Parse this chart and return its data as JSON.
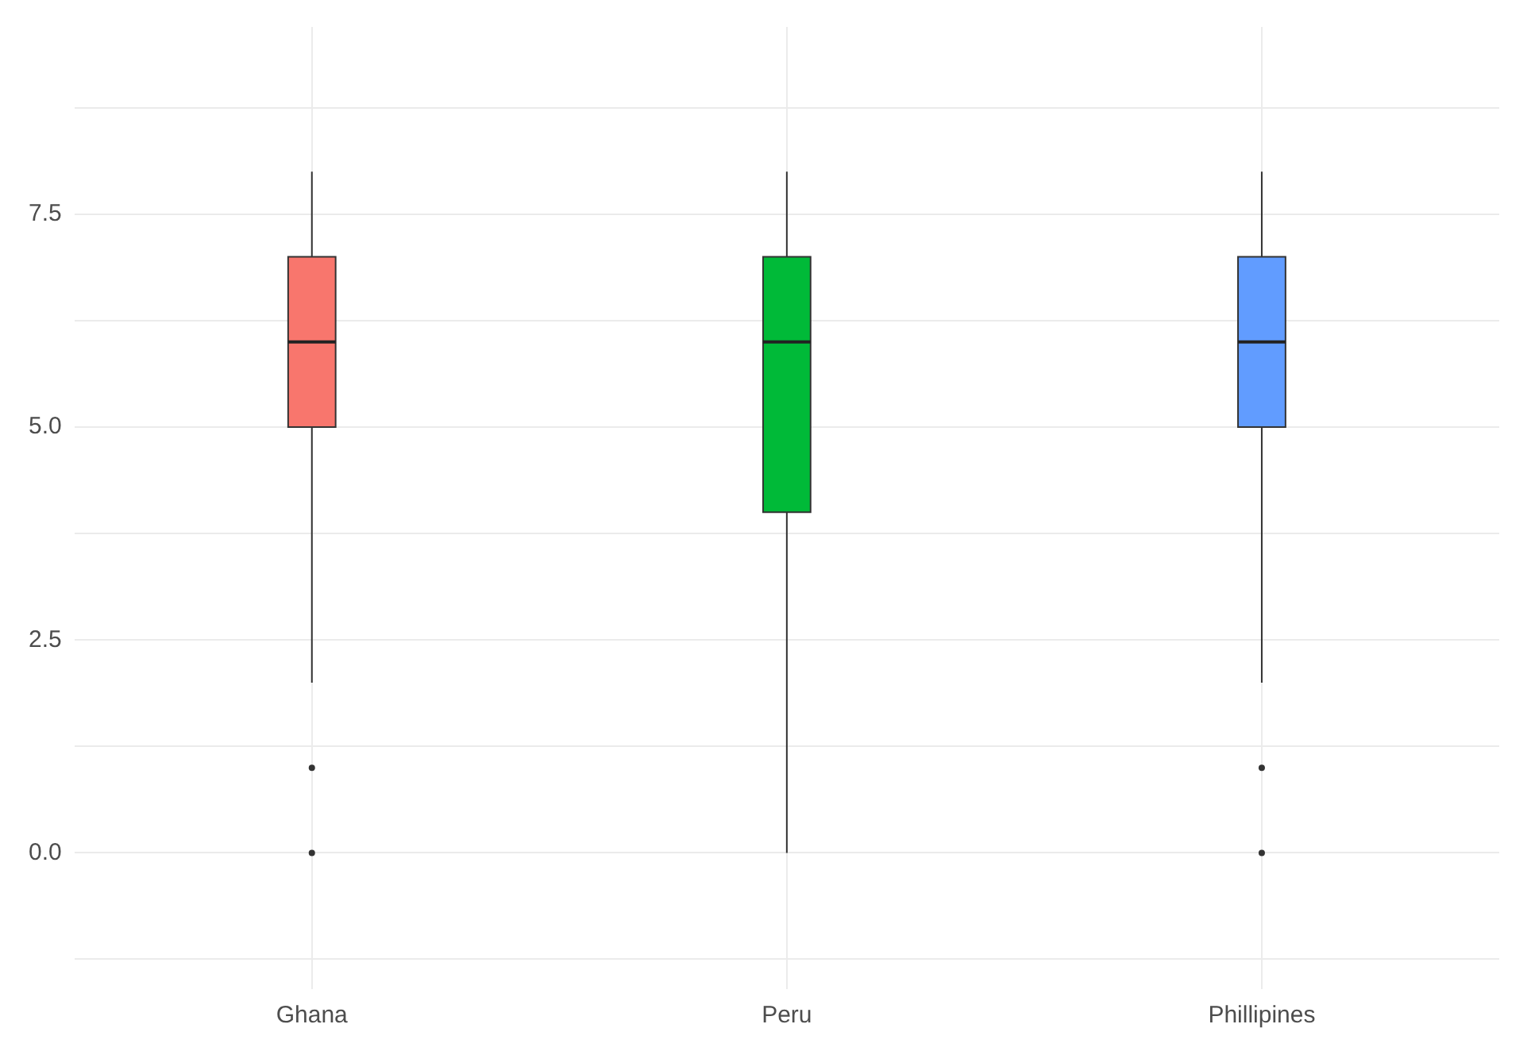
{
  "chart_data": {
    "type": "box",
    "categories": [
      "Ghana",
      "Peru",
      "Phillipines"
    ],
    "colors": [
      "#f8766d",
      "#00ba38",
      "#619cff"
    ],
    "boxes": [
      {
        "low": 2,
        "q1": 5,
        "median": 6,
        "q3": 7,
        "high": 8,
        "outliers": [
          1,
          0
        ]
      },
      {
        "low": 0,
        "q1": 4,
        "median": 6,
        "q3": 7,
        "high": 8
      },
      {
        "low": 2,
        "q1": 5,
        "median": 6,
        "q3": 7,
        "high": 8,
        "outliers": [
          1,
          0
        ]
      }
    ],
    "ylim": [
      -1.6,
      9.7
    ],
    "yticks": [
      {
        "value": -1.25,
        "label": null
      },
      {
        "value": 0,
        "label": "0.0"
      },
      {
        "value": 1.25,
        "label": null
      },
      {
        "value": 2.5,
        "label": "2.5"
      },
      {
        "value": 3.75,
        "label": null
      },
      {
        "value": 5,
        "label": "5.0"
      },
      {
        "value": 6.25,
        "label": null
      },
      {
        "value": 7.5,
        "label": "7.5"
      },
      {
        "value": 8.75,
        "label": null
      }
    ],
    "grid": true,
    "legend": false
  }
}
